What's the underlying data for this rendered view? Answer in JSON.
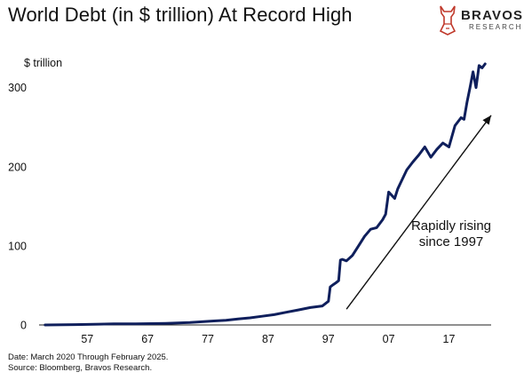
{
  "title": "World Debt (in $ trillion) At Record High",
  "brand": {
    "name": "BRAVOS",
    "sub": "RESEARCH",
    "color": "#c0392b"
  },
  "chart_data": {
    "type": "line",
    "title": "World Debt (in $ trillion) At Record High",
    "ylabel": "$ trillion",
    "xlabel": "",
    "yticks": [
      0,
      100,
      200,
      300
    ],
    "ylim": [
      0,
      330
    ],
    "xlim": [
      1949,
      2024
    ],
    "xticks": [
      1957,
      1967,
      1977,
      1987,
      1997,
      2007,
      2017
    ],
    "xtick_labels": [
      "57",
      "67",
      "77",
      "87",
      "97",
      "07",
      "17"
    ],
    "grid": false,
    "line_color": "#0f1f5c",
    "series": [
      {
        "name": "",
        "x": [
          1950,
          1955,
          1959,
          1962,
          1965,
          1970,
          1974,
          1976,
          1978,
          1980,
          1982,
          1984,
          1986,
          1988,
          1990,
          1992,
          1994,
          1995,
          1996,
          1997,
          1997.3,
          1997.8,
          1998.2,
          1998.7,
          1999,
          1999.3,
          2000,
          2001,
          2002,
          2003,
          2004,
          2005,
          2006,
          2006.5,
          2007,
          2008,
          2008.5,
          2009,
          2010,
          2011,
          2012,
          2013,
          2014,
          2015,
          2016,
          2017,
          2018,
          2019,
          2019.5,
          2020,
          2020.5,
          2021,
          2021.5,
          2022,
          2022.5,
          2023
        ],
        "values": [
          0,
          0.5,
          1,
          1.5,
          1.5,
          2,
          3,
          4,
          5,
          6,
          7.5,
          9,
          11,
          13,
          16,
          19,
          22,
          23,
          24,
          30,
          48,
          51,
          53,
          56,
          82,
          83,
          81,
          88,
          100,
          112,
          121,
          123,
          133,
          140,
          168,
          160,
          172,
          180,
          196,
          206,
          215,
          225,
          212,
          222,
          230,
          225,
          252,
          262,
          260,
          282,
          300,
          320,
          300,
          328,
          325,
          330
        ]
      }
    ],
    "annotations": [
      {
        "text_lines": [
          "Rapidly rising",
          "since 1997"
        ],
        "arrow_from": [
          2000,
          20
        ],
        "arrow_to": [
          2024,
          265
        ]
      }
    ]
  },
  "footer": {
    "line1": "Date: March 2020 Through February 2025.",
    "line2": "Source: Bloomberg, Bravos Research."
  }
}
